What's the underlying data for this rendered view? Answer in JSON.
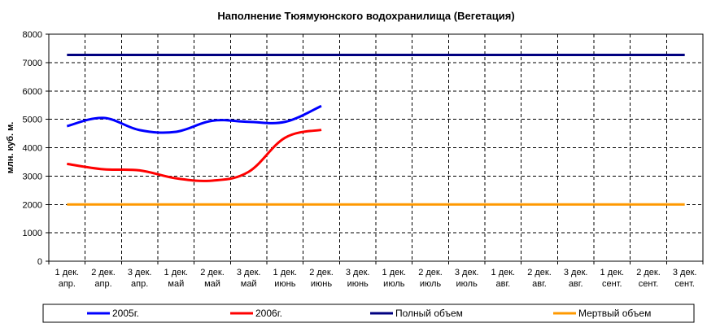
{
  "chart_data": {
    "type": "line",
    "title": "Наполнение Тюямуюнского водохранилища (Вегетация)",
    "xlabel": "",
    "ylabel": "млн. куб. м.",
    "ylim": [
      0,
      8000
    ],
    "yticks": [
      0,
      1000,
      2000,
      3000,
      4000,
      5000,
      6000,
      7000,
      8000
    ],
    "grid": true,
    "legend_placement": "bottom",
    "categories": [
      [
        "1 дек.",
        "апр."
      ],
      [
        "2 дек.",
        "апр."
      ],
      [
        "3 дек.",
        "апр."
      ],
      [
        "1 дек.",
        "май"
      ],
      [
        "2 дек.",
        "май"
      ],
      [
        "3 дек.",
        "май"
      ],
      [
        "1 дек.",
        "июнь"
      ],
      [
        "2 дек.",
        "июнь"
      ],
      [
        "3 дек.",
        "июнь"
      ],
      [
        "1 дек.",
        "июль"
      ],
      [
        "2 дек.",
        "июль"
      ],
      [
        "3 дек.",
        "июль"
      ],
      [
        "1 дек.",
        "авг."
      ],
      [
        "2 дек.",
        "авг."
      ],
      [
        "3 дек.",
        "авг."
      ],
      [
        "1 дек.",
        "сент."
      ],
      [
        "2 дек.",
        "сент."
      ],
      [
        "3 дек.",
        "сент."
      ]
    ],
    "series": [
      {
        "name": "2005г.",
        "color": "#0000ff",
        "values": [
          4760,
          5050,
          4620,
          4560,
          4950,
          4910,
          4910,
          5470,
          null,
          null,
          null,
          null,
          null,
          null,
          null,
          null,
          null,
          null
        ]
      },
      {
        "name": "2006г.",
        "color": "#ff0000",
        "values": [
          3430,
          3240,
          3200,
          2920,
          2840,
          3150,
          4350,
          4630,
          null,
          null,
          null,
          null,
          null,
          null,
          null,
          null,
          null,
          null
        ]
      },
      {
        "name": "Полный объем",
        "color": "#000080",
        "values": [
          7270,
          7270,
          7270,
          7270,
          7270,
          7270,
          7270,
          7270,
          7270,
          7270,
          7270,
          7270,
          7270,
          7270,
          7270,
          7270,
          7270,
          7270
        ]
      },
      {
        "name": "Мертвый объем",
        "color": "#ff9900",
        "values": [
          2000,
          2000,
          2000,
          2000,
          2000,
          2000,
          2000,
          2000,
          2000,
          2000,
          2000,
          2000,
          2000,
          2000,
          2000,
          2000,
          2000,
          2000
        ]
      }
    ]
  }
}
